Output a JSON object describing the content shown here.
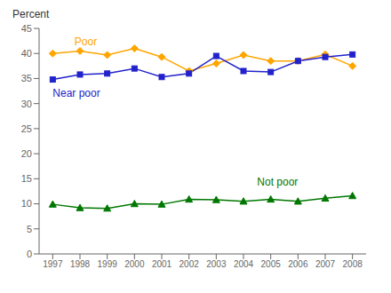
{
  "chart_data": {
    "type": "line",
    "y_label": "Percent",
    "x": [
      1997,
      1998,
      1999,
      2000,
      2001,
      2002,
      2003,
      2004,
      2005,
      2006,
      2007,
      2008
    ],
    "xlim": [
      1996.5,
      2008.5
    ],
    "xticks": [
      1997,
      1998,
      1999,
      2000,
      2001,
      2002,
      2003,
      2004,
      2005,
      2006,
      2007,
      2008
    ],
    "ylim": [
      0,
      45
    ],
    "yticks": [
      0,
      5,
      10,
      15,
      20,
      25,
      30,
      35,
      40,
      45
    ],
    "grid": false,
    "series": [
      {
        "name": "Poor",
        "color": "#FFA500",
        "marker": "diamond",
        "values": [
          40.0,
          40.5,
          39.7,
          41.0,
          39.3,
          36.5,
          38.0,
          39.7,
          38.5,
          38.5,
          39.8,
          37.5
        ]
      },
      {
        "name": "Near poor",
        "color": "#2222CC",
        "marker": "square",
        "values": [
          34.8,
          35.8,
          36.0,
          37.0,
          35.3,
          36.0,
          39.5,
          36.5,
          36.3,
          38.5,
          39.3,
          39.8
        ]
      },
      {
        "name": "Not poor",
        "color": "#007700",
        "marker": "triangle",
        "values": [
          9.9,
          9.2,
          9.1,
          10.0,
          9.9,
          10.9,
          10.8,
          10.5,
          10.9,
          10.5,
          11.1,
          11.6
        ]
      }
    ],
    "annotations": [
      {
        "text": "Poor",
        "x": 1997.8,
        "y": 41.3,
        "color": "#FFA500"
      },
      {
        "text": "Near poor",
        "x": 1997.0,
        "y": 33.2,
        "color": "#2222CC"
      },
      {
        "text": "Not poor",
        "x": 2004.5,
        "y": 13.2,
        "color": "#007700"
      }
    ]
  }
}
